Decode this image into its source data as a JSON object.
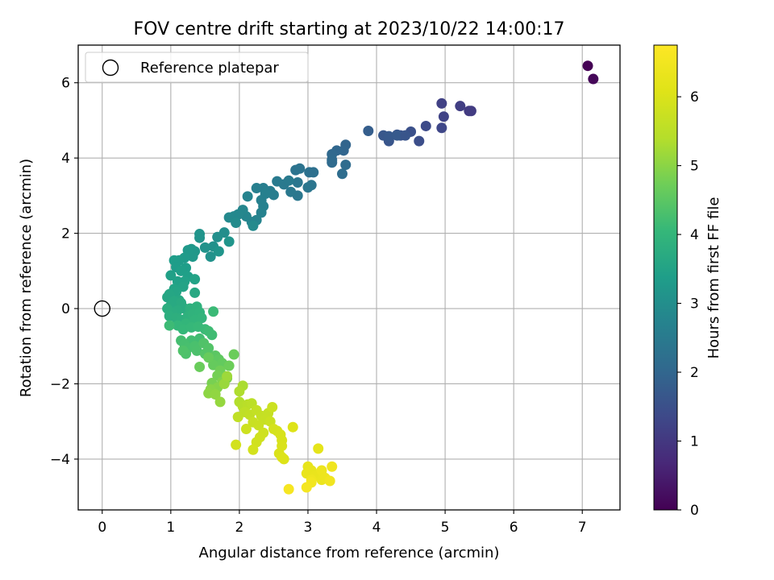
{
  "chart_data": {
    "type": "scatter",
    "title": "FOV centre drift starting at 2023/10/22 14:00:17",
    "xlabel": "Angular distance from reference (arcmin)",
    "ylabel": "Rotation from reference (arcmin)",
    "xlim": [
      -0.35,
      7.55
    ],
    "ylim": [
      -5.35,
      7.0
    ],
    "xticks": [
      0,
      1,
      2,
      3,
      4,
      5,
      6,
      7
    ],
    "yticks": [
      -4,
      -2,
      0,
      2,
      4,
      6
    ],
    "grid": true,
    "legend": {
      "placement": "top-left",
      "label": "Reference platepar"
    },
    "reference_point": {
      "x": 0,
      "y": 0
    },
    "colorbar": {
      "label": "Hours from first FF file",
      "colormap": "viridis",
      "range": [
        0,
        6.75
      ],
      "ticks": [
        0,
        1,
        2,
        3,
        4,
        5,
        6
      ]
    },
    "series": [
      {
        "points": [
          [
            7.08,
            6.45,
            0.0
          ],
          [
            7.16,
            6.1,
            0.1
          ],
          [
            5.35,
            5.25,
            1.05
          ],
          [
            5.38,
            5.25,
            1.08
          ],
          [
            5.22,
            5.38,
            1.12
          ],
          [
            4.95,
            5.45,
            1.18
          ],
          [
            4.98,
            5.1,
            1.22
          ],
          [
            4.95,
            4.8,
            1.3
          ],
          [
            4.72,
            4.85,
            1.4
          ],
          [
            4.62,
            4.45,
            1.45
          ],
          [
            4.5,
            4.7,
            1.5
          ],
          [
            4.35,
            4.6,
            1.55
          ],
          [
            4.3,
            4.62,
            1.58
          ],
          [
            4.18,
            4.45,
            1.62
          ],
          [
            4.1,
            4.6,
            1.66
          ],
          [
            4.18,
            4.58,
            1.7
          ],
          [
            4.3,
            4.6,
            1.72
          ],
          [
            3.88,
            4.72,
            1.8
          ],
          [
            4.42,
            4.6,
            1.62
          ],
          [
            3.55,
            4.35,
            1.95
          ],
          [
            3.52,
            4.2,
            1.98
          ],
          [
            3.42,
            4.2,
            2.0
          ],
          [
            3.35,
            4.1,
            2.05
          ],
          [
            3.35,
            3.95,
            2.08
          ],
          [
            3.35,
            3.88,
            2.1
          ],
          [
            3.55,
            3.82,
            2.12
          ],
          [
            3.5,
            3.58,
            2.15
          ],
          [
            3.02,
            3.62,
            2.25
          ],
          [
            3.08,
            3.62,
            2.22
          ],
          [
            2.88,
            3.72,
            2.3
          ],
          [
            2.82,
            3.68,
            2.32
          ],
          [
            3.05,
            3.28,
            2.35
          ],
          [
            3.0,
            3.22,
            2.38
          ],
          [
            2.85,
            3.35,
            2.4
          ],
          [
            2.85,
            3.0,
            2.42
          ],
          [
            2.75,
            3.1,
            2.45
          ],
          [
            2.65,
            3.3,
            2.47
          ],
          [
            2.72,
            3.4,
            2.5
          ],
          [
            2.55,
            3.38,
            2.5
          ],
          [
            2.45,
            3.12,
            2.55
          ],
          [
            2.5,
            3.02,
            2.57
          ],
          [
            2.35,
            3.2,
            2.6
          ],
          [
            2.25,
            3.2,
            2.62
          ],
          [
            2.38,
            3.05,
            2.64
          ],
          [
            2.32,
            2.88,
            2.66
          ],
          [
            2.35,
            2.72,
            2.68
          ],
          [
            2.32,
            2.55,
            2.7
          ],
          [
            2.12,
            2.98,
            2.72
          ],
          [
            2.25,
            2.35,
            2.74
          ],
          [
            2.18,
            2.3,
            2.76
          ],
          [
            2.1,
            2.45,
            2.78
          ],
          [
            2.05,
            2.62,
            2.8
          ],
          [
            1.98,
            2.5,
            2.82
          ],
          [
            1.92,
            2.45,
            2.85
          ],
          [
            1.85,
            2.42,
            2.88
          ],
          [
            2.2,
            2.2,
            2.9
          ],
          [
            1.95,
            2.28,
            2.92
          ],
          [
            1.78,
            2.02,
            3.0
          ],
          [
            1.68,
            1.9,
            3.02
          ],
          [
            1.62,
            1.65,
            3.05
          ],
          [
            1.58,
            1.38,
            3.08
          ],
          [
            1.5,
            1.62,
            3.1
          ],
          [
            1.42,
            1.88,
            3.12
          ],
          [
            1.42,
            1.98,
            3.14
          ],
          [
            1.85,
            1.78,
            3.15
          ],
          [
            1.7,
            1.52,
            3.16
          ],
          [
            1.35,
            1.52,
            3.2
          ],
          [
            1.32,
            1.38,
            3.22
          ],
          [
            1.3,
            1.58,
            3.24
          ],
          [
            1.25,
            1.55,
            3.26
          ],
          [
            1.2,
            1.35,
            3.3
          ],
          [
            1.12,
            1.28,
            3.32
          ],
          [
            1.05,
            1.28,
            3.34
          ],
          [
            1.08,
            1.1,
            3.36
          ],
          [
            1.22,
            1.08,
            3.38
          ],
          [
            1.15,
            1.0,
            3.4
          ],
          [
            1.25,
            0.85,
            3.42
          ],
          [
            1.0,
            0.88,
            3.44
          ],
          [
            1.1,
            0.72,
            3.46
          ],
          [
            1.2,
            0.72,
            3.48
          ],
          [
            1.35,
            0.78,
            3.5
          ],
          [
            1.18,
            0.58,
            3.52
          ],
          [
            1.05,
            0.52,
            3.54
          ],
          [
            1.08,
            0.45,
            3.56
          ],
          [
            0.98,
            0.38,
            3.58
          ],
          [
            0.95,
            0.3,
            3.6
          ],
          [
            1.12,
            0.22,
            3.62
          ],
          [
            1.35,
            0.42,
            3.64
          ],
          [
            1.05,
            0.2,
            3.66
          ],
          [
            1.0,
            0.08,
            3.68
          ],
          [
            1.15,
            0.15,
            3.7
          ],
          [
            1.2,
            0.0,
            3.72
          ],
          [
            1.1,
            -0.05,
            3.74
          ],
          [
            1.02,
            -0.1,
            3.76
          ],
          [
            0.95,
            0.0,
            3.78
          ],
          [
            0.98,
            -0.2,
            3.8
          ],
          [
            1.08,
            -0.25,
            3.82
          ],
          [
            1.15,
            -0.3,
            3.84
          ],
          [
            1.28,
            0.0,
            3.86
          ],
          [
            1.25,
            -0.2,
            3.88
          ],
          [
            1.38,
            0.05,
            3.9
          ],
          [
            1.32,
            -0.15,
            3.92
          ],
          [
            1.42,
            -0.1,
            3.94
          ],
          [
            1.35,
            -0.3,
            3.96
          ],
          [
            1.45,
            -0.25,
            3.98
          ],
          [
            1.22,
            -0.4,
            4.0
          ],
          [
            1.1,
            -0.45,
            4.02
          ],
          [
            1.18,
            -0.55,
            4.04
          ],
          [
            1.3,
            -0.5,
            4.06
          ],
          [
            1.4,
            -0.48,
            4.08
          ],
          [
            1.5,
            -0.55,
            4.1
          ],
          [
            1.62,
            -0.08,
            4.12
          ],
          [
            0.98,
            -0.45,
            4.14
          ],
          [
            1.55,
            -0.6,
            4.16
          ],
          [
            1.6,
            -0.7,
            4.18
          ],
          [
            1.42,
            -0.8,
            4.2
          ],
          [
            1.3,
            -0.85,
            4.22
          ],
          [
            1.15,
            -0.85,
            4.24
          ],
          [
            1.2,
            -0.95,
            4.26
          ],
          [
            1.25,
            -1.05,
            4.28
          ],
          [
            1.35,
            -1.0,
            4.3
          ],
          [
            1.38,
            -1.12,
            4.32
          ],
          [
            1.22,
            -1.2,
            4.34
          ],
          [
            1.18,
            -1.12,
            4.36
          ],
          [
            1.48,
            -0.92,
            4.38
          ],
          [
            1.55,
            -1.05,
            4.4
          ],
          [
            1.5,
            -1.2,
            4.42
          ],
          [
            1.58,
            -1.3,
            4.44
          ],
          [
            1.65,
            -1.25,
            4.5
          ],
          [
            1.7,
            -1.35,
            4.55
          ],
          [
            1.75,
            -1.45,
            4.6
          ],
          [
            1.62,
            -1.5,
            4.62
          ],
          [
            1.55,
            -1.3,
            4.64
          ],
          [
            1.42,
            -1.55,
            4.66
          ],
          [
            1.92,
            -1.22,
            4.68
          ],
          [
            1.85,
            -1.52,
            4.7
          ],
          [
            1.72,
            -1.65,
            4.74
          ],
          [
            1.68,
            -1.78,
            4.78
          ],
          [
            1.6,
            -1.98,
            4.82
          ],
          [
            1.82,
            -1.85,
            4.86
          ],
          [
            1.75,
            -1.95,
            4.9
          ],
          [
            1.68,
            -2.1,
            4.94
          ],
          [
            1.58,
            -2.15,
            4.98
          ],
          [
            1.55,
            -2.25,
            5.02
          ],
          [
            1.65,
            -2.28,
            5.06
          ],
          [
            1.72,
            -2.48,
            5.1
          ],
          [
            1.78,
            -2.0,
            5.14
          ],
          [
            1.82,
            -1.8,
            5.18
          ],
          [
            2.05,
            -2.05,
            5.3
          ],
          [
            2.0,
            -2.2,
            5.34
          ],
          [
            2.0,
            -2.48,
            5.38
          ],
          [
            2.05,
            -2.6,
            5.42
          ],
          [
            2.12,
            -2.55,
            5.46
          ],
          [
            2.18,
            -2.52,
            5.5
          ],
          [
            2.08,
            -2.75,
            5.54
          ],
          [
            1.98,
            -2.88,
            5.58
          ],
          [
            2.15,
            -2.82,
            5.6
          ],
          [
            2.25,
            -2.7,
            5.62
          ],
          [
            2.32,
            -2.85,
            5.64
          ],
          [
            2.42,
            -2.78,
            5.66
          ],
          [
            2.38,
            -2.95,
            5.68
          ],
          [
            2.2,
            -3.02,
            5.7
          ],
          [
            2.28,
            -3.1,
            5.72
          ],
          [
            2.45,
            -3.0,
            5.74
          ],
          [
            2.48,
            -2.62,
            5.76
          ],
          [
            2.1,
            -3.2,
            5.78
          ],
          [
            2.35,
            -3.3,
            5.8
          ],
          [
            2.3,
            -3.42,
            5.82
          ],
          [
            2.25,
            -3.55,
            5.84
          ],
          [
            1.95,
            -3.62,
            5.86
          ],
          [
            2.2,
            -3.75,
            5.88
          ],
          [
            2.5,
            -3.2,
            5.9
          ],
          [
            2.55,
            -3.25,
            5.92
          ],
          [
            2.6,
            -3.35,
            5.94
          ],
          [
            2.62,
            -3.5,
            5.96
          ],
          [
            2.62,
            -3.65,
            5.98
          ],
          [
            2.58,
            -3.85,
            6.0
          ],
          [
            2.62,
            -3.95,
            6.02
          ],
          [
            2.65,
            -4.0,
            6.04
          ],
          [
            2.78,
            -3.15,
            6.06
          ],
          [
            3.15,
            -3.72,
            6.2
          ],
          [
            3.0,
            -4.2,
            6.25
          ],
          [
            3.05,
            -4.3,
            6.28
          ],
          [
            2.98,
            -4.38,
            6.3
          ],
          [
            3.1,
            -4.45,
            6.32
          ],
          [
            3.2,
            -4.55,
            6.35
          ],
          [
            3.2,
            -4.3,
            6.38
          ],
          [
            3.25,
            -4.5,
            6.4
          ],
          [
            3.05,
            -4.55,
            6.42
          ],
          [
            3.35,
            -4.2,
            6.45
          ],
          [
            3.32,
            -4.58,
            6.48
          ],
          [
            3.05,
            -4.62,
            6.5
          ],
          [
            2.98,
            -4.75,
            6.55
          ],
          [
            2.72,
            -4.8,
            6.6
          ]
        ]
      }
    ]
  }
}
